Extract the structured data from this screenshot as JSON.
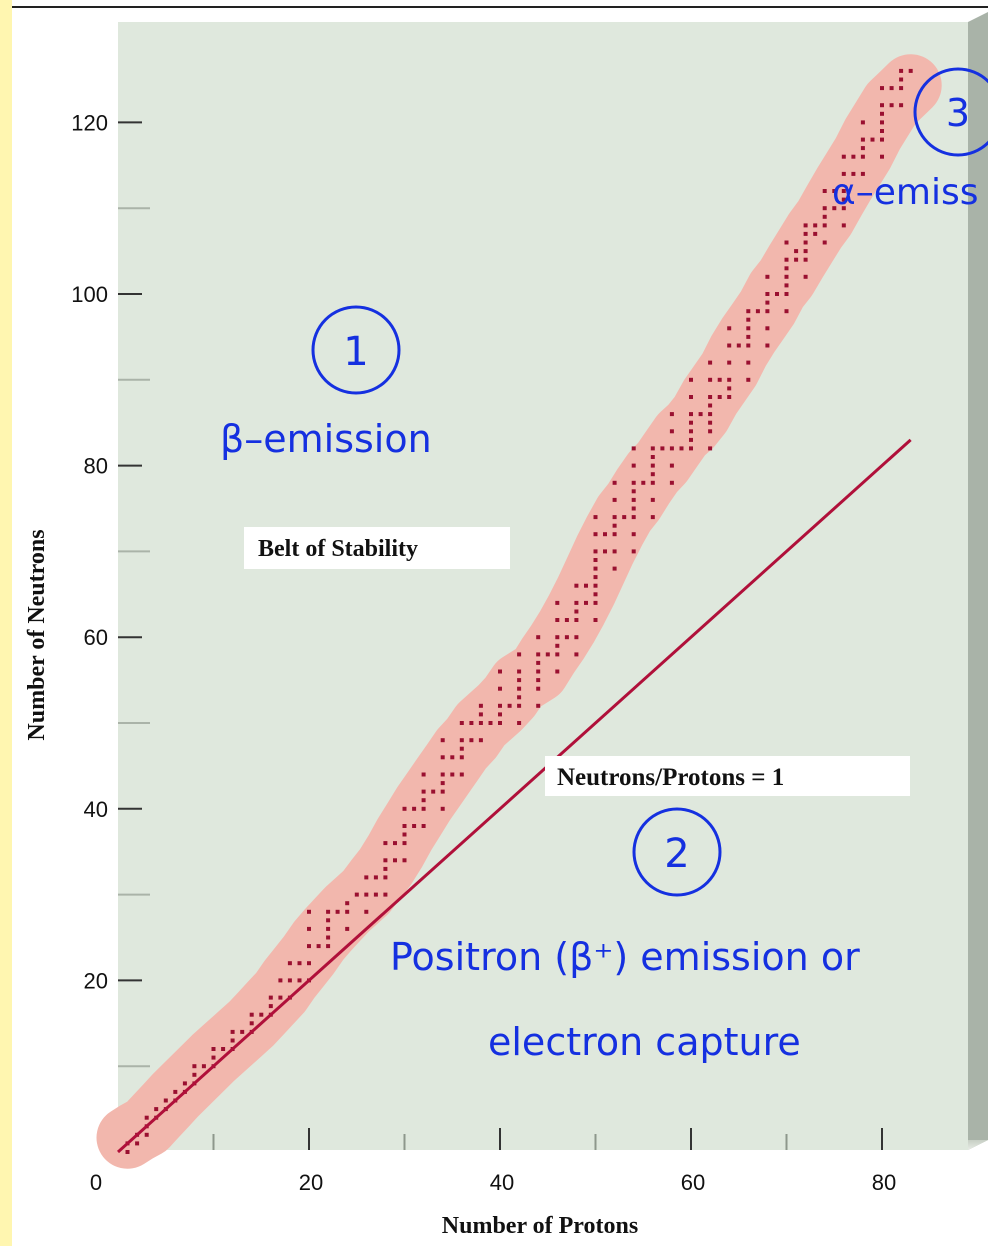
{
  "colors": {
    "plot_background": "#dfe8dd",
    "belt_band": "#f2b7ad",
    "points": "#9a1030",
    "ratio_line": "#b0103a",
    "annotation": "#1530e0"
  },
  "chart_data": {
    "type": "scatter",
    "title": "",
    "xlabel": "Number of Protons",
    "ylabel": "Number of Neutrons",
    "xlim": [
      0,
      90
    ],
    "ylim": [
      0,
      130
    ],
    "x_ticks": [
      0,
      20,
      40,
      60,
      80
    ],
    "y_ticks": [
      20,
      40,
      60,
      80,
      100,
      120
    ],
    "grid": false,
    "series": [
      {
        "name": "Belt of Stability",
        "points": [
          [
            1,
            0
          ],
          [
            1,
            1
          ],
          [
            2,
            1
          ],
          [
            2,
            2
          ],
          [
            3,
            2
          ],
          [
            3,
            3
          ],
          [
            3,
            4
          ],
          [
            4,
            4
          ],
          [
            4,
            5
          ],
          [
            5,
            5
          ],
          [
            5,
            6
          ],
          [
            6,
            6
          ],
          [
            6,
            7
          ],
          [
            7,
            7
          ],
          [
            7,
            8
          ],
          [
            8,
            8
          ],
          [
            8,
            9
          ],
          [
            8,
            10
          ],
          [
            9,
            10
          ],
          [
            10,
            10
          ],
          [
            10,
            11
          ],
          [
            10,
            12
          ],
          [
            11,
            12
          ],
          [
            12,
            12
          ],
          [
            12,
            13
          ],
          [
            12,
            14
          ],
          [
            13,
            14
          ],
          [
            14,
            14
          ],
          [
            14,
            15
          ],
          [
            14,
            16
          ],
          [
            15,
            16
          ],
          [
            16,
            16
          ],
          [
            16,
            17
          ],
          [
            16,
            18
          ],
          [
            17,
            18
          ],
          [
            17,
            20
          ],
          [
            18,
            18
          ],
          [
            18,
            20
          ],
          [
            18,
            22
          ],
          [
            19,
            20
          ],
          [
            19,
            22
          ],
          [
            20,
            20
          ],
          [
            20,
            22
          ],
          [
            20,
            24
          ],
          [
            20,
            26
          ],
          [
            20,
            28
          ],
          [
            21,
            24
          ],
          [
            22,
            24
          ],
          [
            22,
            25
          ],
          [
            22,
            26
          ],
          [
            22,
            27
          ],
          [
            22,
            28
          ],
          [
            23,
            28
          ],
          [
            24,
            26
          ],
          [
            24,
            28
          ],
          [
            24,
            29
          ],
          [
            25,
            30
          ],
          [
            26,
            28
          ],
          [
            26,
            30
          ],
          [
            26,
            32
          ],
          [
            27,
            30
          ],
          [
            27,
            32
          ],
          [
            28,
            30
          ],
          [
            28,
            32
          ],
          [
            28,
            33
          ],
          [
            28,
            34
          ],
          [
            28,
            36
          ],
          [
            29,
            34
          ],
          [
            29,
            36
          ],
          [
            30,
            34
          ],
          [
            30,
            36
          ],
          [
            30,
            37
          ],
          [
            30,
            38
          ],
          [
            30,
            40
          ],
          [
            31,
            38
          ],
          [
            31,
            40
          ],
          [
            32,
            38
          ],
          [
            32,
            40
          ],
          [
            32,
            41
          ],
          [
            32,
            42
          ],
          [
            32,
            44
          ],
          [
            33,
            42
          ],
          [
            34,
            40
          ],
          [
            34,
            42
          ],
          [
            34,
            43
          ],
          [
            34,
            44
          ],
          [
            34,
            46
          ],
          [
            34,
            48
          ],
          [
            35,
            44
          ],
          [
            35,
            46
          ],
          [
            36,
            44
          ],
          [
            36,
            46
          ],
          [
            36,
            47
          ],
          [
            36,
            48
          ],
          [
            36,
            50
          ],
          [
            37,
            48
          ],
          [
            37,
            50
          ],
          [
            38,
            48
          ],
          [
            38,
            50
          ],
          [
            38,
            51
          ],
          [
            38,
            52
          ],
          [
            39,
            50
          ],
          [
            40,
            50
          ],
          [
            40,
            51
          ],
          [
            40,
            52
          ],
          [
            40,
            54
          ],
          [
            40,
            56
          ],
          [
            41,
            52
          ],
          [
            42,
            50
          ],
          [
            42,
            52
          ],
          [
            42,
            53
          ],
          [
            42,
            54
          ],
          [
            42,
            55
          ],
          [
            42,
            56
          ],
          [
            42,
            58
          ],
          [
            44,
            52
          ],
          [
            44,
            54
          ],
          [
            44,
            55
          ],
          [
            44,
            56
          ],
          [
            44,
            57
          ],
          [
            44,
            58
          ],
          [
            44,
            60
          ],
          [
            45,
            58
          ],
          [
            46,
            56
          ],
          [
            46,
            58
          ],
          [
            46,
            59
          ],
          [
            46,
            60
          ],
          [
            46,
            62
          ],
          [
            46,
            64
          ],
          [
            47,
            60
          ],
          [
            47,
            62
          ],
          [
            48,
            58
          ],
          [
            48,
            60
          ],
          [
            48,
            62
          ],
          [
            48,
            63
          ],
          [
            48,
            64
          ],
          [
            48,
            66
          ],
          [
            49,
            64
          ],
          [
            49,
            66
          ],
          [
            50,
            62
          ],
          [
            50,
            64
          ],
          [
            50,
            65
          ],
          [
            50,
            66
          ],
          [
            50,
            67
          ],
          [
            50,
            68
          ],
          [
            50,
            69
          ],
          [
            50,
            70
          ],
          [
            50,
            72
          ],
          [
            50,
            74
          ],
          [
            51,
            70
          ],
          [
            51,
            72
          ],
          [
            52,
            68
          ],
          [
            52,
            70
          ],
          [
            52,
            72
          ],
          [
            52,
            73
          ],
          [
            52,
            74
          ],
          [
            52,
            76
          ],
          [
            52,
            78
          ],
          [
            53,
            74
          ],
          [
            54,
            70
          ],
          [
            54,
            72
          ],
          [
            54,
            74
          ],
          [
            54,
            75
          ],
          [
            54,
            76
          ],
          [
            54,
            77
          ],
          [
            54,
            78
          ],
          [
            54,
            80
          ],
          [
            54,
            82
          ],
          [
            55,
            78
          ],
          [
            56,
            74
          ],
          [
            56,
            76
          ],
          [
            56,
            78
          ],
          [
            56,
            79
          ],
          [
            56,
            80
          ],
          [
            56,
            81
          ],
          [
            56,
            82
          ],
          [
            57,
            82
          ],
          [
            58,
            78
          ],
          [
            58,
            80
          ],
          [
            58,
            82
          ],
          [
            58,
            84
          ],
          [
            58,
            86
          ],
          [
            59,
            82
          ],
          [
            60,
            82
          ],
          [
            60,
            83
          ],
          [
            60,
            84
          ],
          [
            60,
            85
          ],
          [
            60,
            86
          ],
          [
            60,
            88
          ],
          [
            60,
            90
          ],
          [
            61,
            86
          ],
          [
            62,
            82
          ],
          [
            62,
            84
          ],
          [
            62,
            85
          ],
          [
            62,
            86
          ],
          [
            62,
            87
          ],
          [
            62,
            88
          ],
          [
            62,
            90
          ],
          [
            62,
            92
          ],
          [
            63,
            88
          ],
          [
            63,
            90
          ],
          [
            64,
            88
          ],
          [
            64,
            89
          ],
          [
            64,
            90
          ],
          [
            64,
            92
          ],
          [
            64,
            94
          ],
          [
            64,
            96
          ],
          [
            65,
            94
          ],
          [
            66,
            90
          ],
          [
            66,
            92
          ],
          [
            66,
            94
          ],
          [
            66,
            95
          ],
          [
            66,
            96
          ],
          [
            66,
            97
          ],
          [
            66,
            98
          ],
          [
            67,
            98
          ],
          [
            68,
            94
          ],
          [
            68,
            96
          ],
          [
            68,
            98
          ],
          [
            68,
            99
          ],
          [
            68,
            100
          ],
          [
            68,
            102
          ],
          [
            69,
            100
          ],
          [
            70,
            98
          ],
          [
            70,
            100
          ],
          [
            70,
            101
          ],
          [
            70,
            102
          ],
          [
            70,
            103
          ],
          [
            70,
            104
          ],
          [
            70,
            106
          ],
          [
            71,
            104
          ],
          [
            71,
            105
          ],
          [
            72,
            102
          ],
          [
            72,
            104
          ],
          [
            72,
            105
          ],
          [
            72,
            106
          ],
          [
            72,
            107
          ],
          [
            72,
            108
          ],
          [
            73,
            107
          ],
          [
            73,
            108
          ],
          [
            74,
            106
          ],
          [
            74,
            108
          ],
          [
            74,
            109
          ],
          [
            74,
            110
          ],
          [
            74,
            112
          ],
          [
            75,
            110
          ],
          [
            75,
            112
          ],
          [
            76,
            108
          ],
          [
            76,
            110
          ],
          [
            76,
            111
          ],
          [
            76,
            112
          ],
          [
            76,
            114
          ],
          [
            76,
            116
          ],
          [
            77,
            114
          ],
          [
            77,
            116
          ],
          [
            78,
            114
          ],
          [
            78,
            116
          ],
          [
            78,
            117
          ],
          [
            78,
            118
          ],
          [
            78,
            120
          ],
          [
            79,
            118
          ],
          [
            80,
            116
          ],
          [
            80,
            118
          ],
          [
            80,
            119
          ],
          [
            80,
            120
          ],
          [
            80,
            121
          ],
          [
            80,
            122
          ],
          [
            80,
            124
          ],
          [
            81,
            122
          ],
          [
            81,
            124
          ],
          [
            82,
            122
          ],
          [
            82,
            124
          ],
          [
            82,
            125
          ],
          [
            82,
            126
          ],
          [
            83,
            126
          ]
        ]
      }
    ],
    "ratio_line": {
      "label": "Neutrons/Protons = 1",
      "from": [
        0,
        0
      ],
      "to": [
        83,
        83
      ]
    },
    "annotations": [
      {
        "number": "1",
        "text": "β–emission",
        "region": "above belt"
      },
      {
        "number": "2",
        "text": "Positron (β⁺) emission or",
        "text2": "electron capture",
        "region": "below N/Z = 1 line"
      },
      {
        "number": "3",
        "text": "α–emiss",
        "region": "upper right, beyond belt"
      }
    ],
    "belt_label": "Belt of Stability"
  }
}
